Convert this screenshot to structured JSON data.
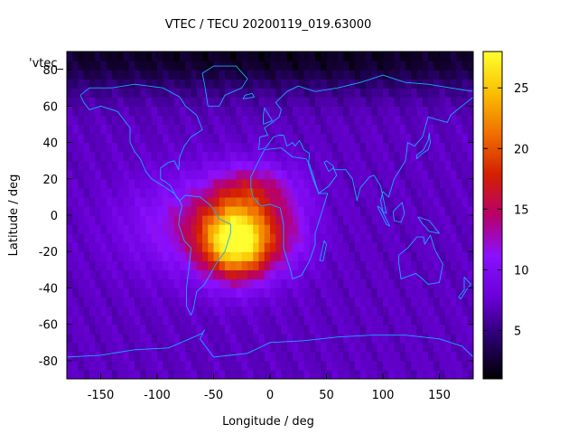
{
  "chart_data": {
    "type": "heatmap",
    "title": "VTEC / TECU 20200119_019.63000",
    "xlabel": "Longitude / deg",
    "ylabel": "Latitude / deg",
    "key_label": "'vtec_",
    "xlim": [
      -180,
      180
    ],
    "ylim": [
      -90,
      90
    ],
    "x_ticks": [
      -150,
      -100,
      -50,
      0,
      50,
      100,
      150
    ],
    "y_ticks": [
      -80,
      -60,
      -40,
      -20,
      0,
      20,
      40,
      60,
      80
    ],
    "colorbar": {
      "range": [
        1,
        28
      ],
      "ticks": [
        5,
        10,
        15,
        20,
        25
      ],
      "palette": [
        "#000000",
        "#2a006e",
        "#6a00d8",
        "#8a10ff",
        "#b8006a",
        "#d42000",
        "#f07000",
        "#fac000",
        "#ffff30"
      ]
    },
    "background_vtec": 7,
    "anomalies": [
      {
        "lon": -28,
        "lat": -14,
        "peak": 20,
        "sigma_lon": 22,
        "sigma_lat": 14
      },
      {
        "lon": -60,
        "lat": -5,
        "peak": 6,
        "sigma_lon": 45,
        "sigma_lat": 18
      },
      {
        "lon": -15,
        "lat": 15,
        "peak": 6,
        "sigma_lon": 25,
        "sigma_lat": 10
      },
      {
        "lon": 20,
        "lat": -8,
        "peak": 3,
        "sigma_lon": 15,
        "sigma_lat": 15
      },
      {
        "lon": 0,
        "lat": 88,
        "peak": -5,
        "sigma_lon": 400,
        "sigma_lat": 14
      }
    ],
    "coastlines": [
      {
        "name": "north-america",
        "points": [
          [
            -168,
            66
          ],
          [
            -160,
            70
          ],
          [
            -140,
            70
          ],
          [
            -120,
            72
          ],
          [
            -95,
            70
          ],
          [
            -80,
            65
          ],
          [
            -75,
            60
          ],
          [
            -65,
            55
          ],
          [
            -60,
            47
          ],
          [
            -70,
            43
          ],
          [
            -76,
            38
          ],
          [
            -80,
            32
          ],
          [
            -81,
            25
          ],
          [
            -85,
            30
          ],
          [
            -90,
            29
          ],
          [
            -97,
            26
          ],
          [
            -97,
            20
          ],
          [
            -92,
            18
          ],
          [
            -88,
            16
          ],
          [
            -83,
            10
          ],
          [
            -80,
            8
          ],
          [
            -85,
            12
          ],
          [
            -92,
            15
          ],
          [
            -105,
            20
          ],
          [
            -110,
            24
          ],
          [
            -115,
            31
          ],
          [
            -120,
            35
          ],
          [
            -124,
            40
          ],
          [
            -124,
            48
          ],
          [
            -135,
            57
          ],
          [
            -150,
            60
          ],
          [
            -160,
            58
          ],
          [
            -165,
            62
          ],
          [
            -168,
            66
          ]
        ]
      },
      {
        "name": "south-america",
        "points": [
          [
            -80,
            8
          ],
          [
            -75,
            11
          ],
          [
            -62,
            10
          ],
          [
            -52,
            5
          ],
          [
            -45,
            -2
          ],
          [
            -35,
            -5
          ],
          [
            -35,
            -10
          ],
          [
            -40,
            -20
          ],
          [
            -48,
            -27
          ],
          [
            -58,
            -38
          ],
          [
            -65,
            -42
          ],
          [
            -68,
            -52
          ],
          [
            -70,
            -55
          ],
          [
            -74,
            -50
          ],
          [
            -74,
            -40
          ],
          [
            -72,
            -30
          ],
          [
            -70,
            -18
          ],
          [
            -76,
            -14
          ],
          [
            -81,
            -5
          ],
          [
            -80,
            0
          ],
          [
            -78,
            5
          ],
          [
            -80,
            8
          ]
        ]
      },
      {
        "name": "greenland",
        "points": [
          [
            -55,
            60
          ],
          [
            -45,
            60
          ],
          [
            -40,
            66
          ],
          [
            -25,
            70
          ],
          [
            -20,
            75
          ],
          [
            -30,
            82
          ],
          [
            -50,
            82
          ],
          [
            -60,
            78
          ],
          [
            -58,
            72
          ],
          [
            -55,
            60
          ]
        ]
      },
      {
        "name": "africa",
        "points": [
          [
            -17,
            21
          ],
          [
            -10,
            30
          ],
          [
            -5,
            36
          ],
          [
            10,
            37
          ],
          [
            20,
            32
          ],
          [
            32,
            31
          ],
          [
            35,
            28
          ],
          [
            43,
            12
          ],
          [
            51,
            12
          ],
          [
            45,
            0
          ],
          [
            40,
            -10
          ],
          [
            40,
            -16
          ],
          [
            35,
            -25
          ],
          [
            28,
            -33
          ],
          [
            20,
            -35
          ],
          [
            18,
            -30
          ],
          [
            12,
            -18
          ],
          [
            12,
            -5
          ],
          [
            9,
            4
          ],
          [
            0,
            6
          ],
          [
            -8,
            5
          ],
          [
            -15,
            10
          ],
          [
            -17,
            15
          ],
          [
            -17,
            21
          ]
        ]
      },
      {
        "name": "eurasia",
        "points": [
          [
            -10,
            36
          ],
          [
            -9,
            43
          ],
          [
            -2,
            44
          ],
          [
            -5,
            48
          ],
          [
            2,
            51
          ],
          [
            8,
            54
          ],
          [
            10,
            58
          ],
          [
            5,
            62
          ],
          [
            15,
            68
          ],
          [
            25,
            71
          ],
          [
            40,
            68
          ],
          [
            60,
            70
          ],
          [
            80,
            73
          ],
          [
            100,
            77
          ],
          [
            120,
            73
          ],
          [
            140,
            72
          ],
          [
            160,
            70
          ],
          [
            180,
            68
          ],
          [
            180,
            65
          ],
          [
            170,
            60
          ],
          [
            160,
            55
          ],
          [
            157,
            51
          ],
          [
            140,
            54
          ],
          [
            135,
            43
          ],
          [
            128,
            38
          ],
          [
            122,
            40
          ],
          [
            120,
            30
          ],
          [
            110,
            20
          ],
          [
            105,
            10
          ],
          [
            100,
            13
          ],
          [
            98,
            8
          ],
          [
            100,
            2
          ],
          [
            103,
            1
          ],
          [
            98,
            16
          ],
          [
            92,
            22
          ],
          [
            88,
            21
          ],
          [
            80,
            15
          ],
          [
            77,
            8
          ],
          [
            73,
            20
          ],
          [
            67,
            25
          ],
          [
            57,
            25
          ],
          [
            56,
            27
          ],
          [
            50,
            30
          ],
          [
            48,
            29
          ],
          [
            52,
            24
          ],
          [
            56,
            26
          ],
          [
            59,
            22
          ],
          [
            52,
            16
          ],
          [
            43,
            12
          ],
          [
            38,
            20
          ],
          [
            34,
            28
          ],
          [
            35,
            34
          ],
          [
            30,
            36
          ],
          [
            27,
            40
          ],
          [
            26,
            41
          ],
          [
            22,
            38
          ],
          [
            20,
            40
          ],
          [
            15,
            38
          ],
          [
            12,
            44
          ],
          [
            8,
            44
          ],
          [
            3,
            43
          ],
          [
            -4,
            37
          ],
          [
            -10,
            36
          ]
        ]
      },
      {
        "name": "australia",
        "points": [
          [
            114,
            -22
          ],
          [
            122,
            -18
          ],
          [
            130,
            -12
          ],
          [
            136,
            -12
          ],
          [
            137,
            -16
          ],
          [
            142,
            -11
          ],
          [
            146,
            -19
          ],
          [
            153,
            -27
          ],
          [
            150,
            -37
          ],
          [
            140,
            -38
          ],
          [
            135,
            -35
          ],
          [
            129,
            -32
          ],
          [
            116,
            -35
          ],
          [
            114,
            -26
          ],
          [
            114,
            -22
          ]
        ]
      },
      {
        "name": "antarctica",
        "points": [
          [
            -180,
            -78
          ],
          [
            -150,
            -77
          ],
          [
            -120,
            -74
          ],
          [
            -90,
            -73
          ],
          [
            -60,
            -65
          ],
          [
            -58,
            -63
          ],
          [
            -62,
            -68
          ],
          [
            -50,
            -78
          ],
          [
            -20,
            -76
          ],
          [
            0,
            -70
          ],
          [
            30,
            -69
          ],
          [
            60,
            -67
          ],
          [
            90,
            -66
          ],
          [
            120,
            -66
          ],
          [
            150,
            -68
          ],
          [
            170,
            -72
          ],
          [
            180,
            -78
          ]
        ]
      },
      {
        "name": "madagascar",
        "points": [
          [
            44,
            -25
          ],
          [
            48,
            -14
          ],
          [
            50,
            -16
          ],
          [
            47,
            -25
          ],
          [
            44,
            -25
          ]
        ]
      },
      {
        "name": "borneo",
        "points": [
          [
            109,
            2
          ],
          [
            117,
            7
          ],
          [
            119,
            1
          ],
          [
            116,
            -4
          ],
          [
            110,
            -3
          ],
          [
            109,
            2
          ]
        ]
      },
      {
        "name": "sumatra",
        "points": [
          [
            95,
            5
          ],
          [
            98,
            4
          ],
          [
            106,
            -6
          ],
          [
            103,
            -5
          ],
          [
            95,
            5
          ]
        ]
      },
      {
        "name": "new-guinea",
        "points": [
          [
            131,
            -1
          ],
          [
            141,
            -3
          ],
          [
            150,
            -10
          ],
          [
            141,
            -9
          ],
          [
            134,
            -4
          ],
          [
            131,
            -1
          ]
        ]
      },
      {
        "name": "japan",
        "points": [
          [
            130,
            31
          ],
          [
            135,
            34
          ],
          [
            140,
            36
          ],
          [
            142,
            40
          ],
          [
            141,
            45
          ],
          [
            140,
            41
          ],
          [
            136,
            36
          ],
          [
            130,
            33
          ],
          [
            130,
            31
          ]
        ]
      },
      {
        "name": "uk",
        "points": [
          [
            -6,
            50
          ],
          [
            2,
            52
          ],
          [
            -2,
            56
          ],
          [
            -5,
            59
          ],
          [
            -6,
            55
          ],
          [
            -6,
            50
          ]
        ]
      },
      {
        "name": "new-zealand",
        "points": [
          [
            172,
            -34
          ],
          [
            178,
            -38
          ],
          [
            174,
            -41
          ],
          [
            169,
            -46
          ],
          [
            167,
            -45
          ],
          [
            172,
            -41
          ],
          [
            172,
            -34
          ]
        ]
      },
      {
        "name": "iceland",
        "points": [
          [
            -24,
            64
          ],
          [
            -14,
            65
          ],
          [
            -16,
            67
          ],
          [
            -22,
            66
          ],
          [
            -24,
            64
          ]
        ]
      }
    ]
  }
}
